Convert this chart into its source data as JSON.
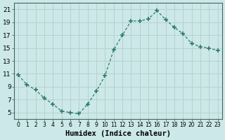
{
  "x": [
    0,
    1,
    2,
    3,
    4,
    5,
    6,
    7,
    8,
    9,
    10,
    11,
    12,
    13,
    14,
    15,
    16,
    17,
    18,
    19,
    20,
    21,
    22,
    23
  ],
  "y": [
    10.8,
    9.3,
    8.5,
    7.2,
    6.3,
    5.2,
    5.0,
    4.8,
    6.3,
    8.3,
    10.7,
    14.7,
    17.0,
    19.2,
    19.2,
    19.5,
    20.8,
    19.4,
    18.2,
    17.2,
    15.7,
    15.2,
    15.0,
    14.6
  ],
  "line_color": "#2e7d6e",
  "marker": "+",
  "marker_size": 5,
  "bg_color": "#cce8e8",
  "grid_color": "#b8d0d0",
  "xlabel": "Humidex (Indice chaleur)",
  "xlim": [
    -0.5,
    23.5
  ],
  "ylim": [
    4.0,
    22.0
  ],
  "yticks": [
    5,
    7,
    9,
    11,
    13,
    15,
    17,
    19,
    21
  ],
  "xtick_labels": [
    "0",
    "1",
    "2",
    "3",
    "4",
    "5",
    "6",
    "7",
    "8",
    "9",
    "10",
    "11",
    "12",
    "13",
    "14",
    "15",
    "16",
    "17",
    "18",
    "19",
    "20",
    "21",
    "22",
    "23"
  ]
}
